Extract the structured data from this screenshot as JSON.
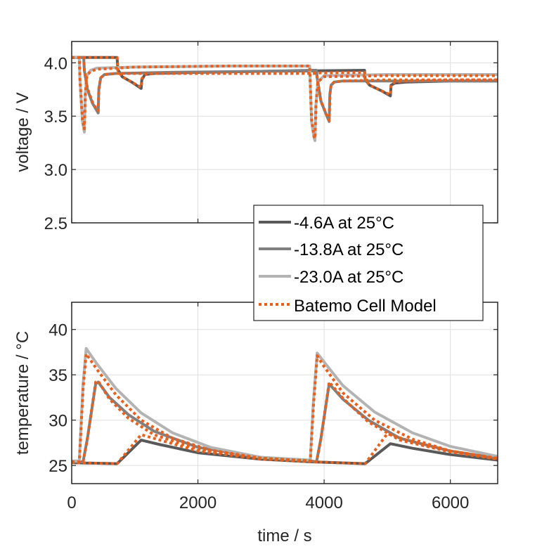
{
  "chart_data": [
    {
      "type": "line",
      "panel": "top",
      "title": "",
      "xlabel": "",
      "ylabel": "voltage / V",
      "xlim": [
        0,
        6750
      ],
      "ylim": [
        2.5,
        4.2
      ],
      "xticks": [
        0,
        2000,
        4000,
        6000
      ],
      "yticks": [
        2.5,
        3.0,
        3.5,
        4.0
      ],
      "ytick_labels": [
        "2.5",
        "3.0",
        "3.5",
        "4.0"
      ],
      "grid": true,
      "legend": {
        "placement": "bottom-right",
        "entries": [
          "-4.6A at 25°C",
          "-13.8A at 25°C",
          "-23.0A at 25°C",
          "Batemo Cell Model"
        ]
      },
      "series": [
        {
          "name": "-4.6A at 25°C",
          "color": "#595959",
          "style": "solid",
          "x": [
            0,
            720,
            730,
            800,
            950,
            1100,
            1110,
            1160,
            1300,
            2000,
            3000,
            4640,
            4650,
            4720,
            4900,
            5050,
            5060,
            5120,
            5300,
            6000,
            6750
          ],
          "y": [
            4.05,
            4.05,
            3.94,
            3.87,
            3.82,
            3.76,
            3.84,
            3.89,
            3.9,
            3.91,
            3.92,
            3.93,
            3.84,
            3.79,
            3.74,
            3.69,
            3.79,
            3.81,
            3.82,
            3.83,
            3.83
          ]
        },
        {
          "name": "-13.8A at 25°C",
          "color": "#808080",
          "style": "solid",
          "x": [
            0,
            190,
            200,
            250,
            330,
            400,
            420,
            430,
            460,
            520,
            700,
            1500,
            3000,
            3780,
            3880,
            3890,
            3950,
            4030,
            4080,
            4090,
            4110,
            4160,
            4300,
            5000,
            6750
          ],
          "y": [
            4.05,
            4.05,
            3.93,
            3.75,
            3.62,
            3.55,
            3.53,
            3.75,
            3.86,
            3.89,
            3.9,
            3.91,
            3.92,
            3.93,
            3.93,
            3.86,
            3.64,
            3.52,
            3.45,
            3.7,
            3.79,
            3.82,
            3.83,
            3.83,
            3.83
          ]
        },
        {
          "name": "-23.0A at 25°C",
          "color": "#b3b3b3",
          "style": "solid",
          "x": [
            0,
            120,
            130,
            170,
            200,
            215,
            240,
            300,
            400,
            1000,
            2500,
            3770,
            3780,
            3800,
            3840,
            3855,
            3870,
            3900,
            4000,
            5000,
            6750
          ],
          "y": [
            4.05,
            4.05,
            3.85,
            3.45,
            3.35,
            3.7,
            3.88,
            3.93,
            3.95,
            3.96,
            3.97,
            3.97,
            3.8,
            3.45,
            3.3,
            3.27,
            3.6,
            3.82,
            3.88,
            3.89,
            3.89
          ]
        },
        {
          "name": "Batemo Cell Model (-4.6A)",
          "color": "#e8601c",
          "style": "dotted",
          "x": [
            0,
            720,
            730,
            800,
            950,
            1100,
            1110,
            1160,
            1300,
            2000,
            3000,
            4640,
            4650,
            4720,
            4900,
            5050,
            5060,
            5120,
            5300,
            6000,
            6750
          ],
          "y": [
            4.05,
            4.05,
            3.93,
            3.87,
            3.82,
            3.77,
            3.85,
            3.89,
            3.9,
            3.9,
            3.9,
            3.91,
            3.84,
            3.79,
            3.74,
            3.7,
            3.79,
            3.82,
            3.83,
            3.84,
            3.84
          ]
        },
        {
          "name": "Batemo Cell Model (-13.8A)",
          "color": "#e8601c",
          "style": "dotted",
          "x": [
            0,
            190,
            200,
            250,
            330,
            400,
            420,
            430,
            460,
            520,
            700,
            1500,
            3000,
            3780,
            3880,
            3890,
            3950,
            4030,
            4080,
            4090,
            4110,
            4160,
            4300,
            5000,
            6750
          ],
          "y": [
            4.05,
            4.05,
            3.93,
            3.76,
            3.63,
            3.56,
            3.55,
            3.76,
            3.86,
            3.89,
            3.9,
            3.9,
            3.9,
            3.9,
            3.9,
            3.85,
            3.64,
            3.52,
            3.46,
            3.7,
            3.79,
            3.82,
            3.83,
            3.84,
            3.84
          ]
        },
        {
          "name": "Batemo Cell Model (-23.0A)",
          "color": "#e8601c",
          "style": "dotted",
          "x": [
            0,
            120,
            130,
            170,
            200,
            215,
            240,
            300,
            400,
            1000,
            2500,
            3770,
            3780,
            3800,
            3840,
            3855,
            3870,
            3900,
            4000,
            5000,
            6750
          ],
          "y": [
            4.05,
            4.05,
            3.85,
            3.47,
            3.38,
            3.7,
            3.88,
            3.92,
            3.94,
            3.96,
            3.97,
            3.97,
            3.8,
            3.47,
            3.31,
            3.29,
            3.6,
            3.82,
            3.87,
            3.88,
            3.88
          ]
        }
      ]
    },
    {
      "type": "line",
      "panel": "bottom",
      "title": "",
      "xlabel": "time / s",
      "ylabel": "temperature / °C",
      "xlim": [
        0,
        6750
      ],
      "ylim": [
        23,
        43
      ],
      "xticks": [
        0,
        2000,
        4000,
        6000
      ],
      "xtick_labels": [
        "0",
        "2000",
        "4000",
        "6000"
      ],
      "yticks": [
        25,
        30,
        35,
        40
      ],
      "ytick_labels": [
        "25",
        "30",
        "35",
        "40"
      ],
      "grid": true,
      "series": [
        {
          "name": "-4.6A at 25°C",
          "color": "#595959",
          "style": "solid",
          "x": [
            0,
            720,
            1100,
            1400,
            2000,
            3000,
            3800,
            4650,
            5050,
            5400,
            6000,
            6750
          ],
          "y": [
            25.3,
            25.2,
            27.8,
            27.3,
            26.4,
            25.7,
            25.4,
            25.2,
            27.4,
            26.9,
            26.2,
            25.6
          ]
        },
        {
          "name": "-13.8A at 25°C",
          "color": "#808080",
          "style": "solid",
          "x": [
            0,
            180,
            250,
            380,
            420,
            600,
            900,
            1300,
            2000,
            3000,
            3800,
            3880,
            3950,
            4080,
            4300,
            4700,
            5200,
            6000,
            6750
          ],
          "y": [
            25.4,
            25.4,
            28.0,
            34.0,
            34.2,
            32.5,
            30.6,
            28.8,
            27.0,
            25.9,
            25.5,
            25.4,
            28.0,
            34.0,
            32.3,
            30.0,
            28.0,
            26.6,
            25.8
          ]
        },
        {
          "name": "-23.0A at 25°C",
          "color": "#b3b3b3",
          "style": "solid",
          "x": [
            0,
            120,
            180,
            230,
            400,
            700,
            1100,
            1600,
            2200,
            3000,
            3780,
            3830,
            3890,
            4000,
            4300,
            4800,
            5400,
            6000,
            6750
          ],
          "y": [
            25.5,
            25.5,
            34.0,
            37.9,
            36.2,
            33.5,
            30.8,
            28.6,
            27.0,
            25.9,
            25.6,
            32.0,
            37.4,
            36.4,
            33.8,
            30.9,
            28.6,
            27.1,
            26.0
          ]
        },
        {
          "name": "Batemo Cell Model (-4.6A)",
          "color": "#e8601c",
          "style": "dotted",
          "x": [
            0,
            720,
            1100,
            1400,
            2000,
            3000,
            3800,
            4650,
            5000,
            5400,
            6000,
            6750
          ],
          "y": [
            25.3,
            25.2,
            28.4,
            27.8,
            26.6,
            25.7,
            25.4,
            25.2,
            28.5,
            27.6,
            26.6,
            25.7
          ]
        },
        {
          "name": "Batemo Cell Model (-13.8A)",
          "color": "#e8601c",
          "style": "dotted",
          "x": [
            0,
            180,
            250,
            380,
            420,
            600,
            900,
            1300,
            2000,
            3000,
            3800,
            3880,
            3950,
            4080,
            4300,
            4700,
            5200,
            6000,
            6750
          ],
          "y": [
            25.4,
            25.4,
            28.0,
            34.2,
            34.3,
            32.3,
            30.2,
            28.4,
            26.8,
            25.8,
            25.5,
            25.4,
            28.0,
            34.2,
            32.4,
            29.8,
            27.8,
            26.5,
            25.7
          ]
        },
        {
          "name": "Batemo Cell Model (-23.0A)",
          "color": "#e8601c",
          "style": "dotted",
          "x": [
            0,
            120,
            180,
            230,
            400,
            700,
            1100,
            1600,
            2200,
            3000,
            3780,
            3830,
            3890,
            4000,
            4300,
            4800,
            5400,
            6000,
            6750
          ],
          "y": [
            25.4,
            25.4,
            33.5,
            37.3,
            35.6,
            32.8,
            30.0,
            28.0,
            26.7,
            25.8,
            25.5,
            31.5,
            37.1,
            35.9,
            33.0,
            30.0,
            27.9,
            26.6,
            25.8
          ]
        }
      ]
    }
  ]
}
